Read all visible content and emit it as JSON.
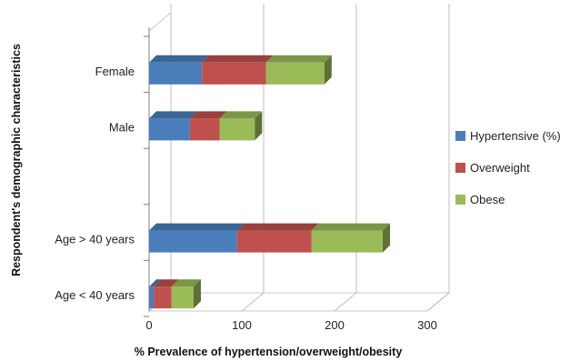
{
  "chart_data": {
    "type": "bar",
    "orientation": "horizontal",
    "stacked": true,
    "three_d": true,
    "categories": [
      "Female",
      "Male",
      "",
      "Age > 40 years",
      "Age < 40 years"
    ],
    "series": [
      {
        "name": "Hypertensive (%)",
        "color": "#4a7ebb",
        "values": [
          57,
          44,
          null,
          95,
          5
        ]
      },
      {
        "name": "Overweight",
        "color": "#c0504d",
        "values": [
          69,
          32,
          null,
          80,
          19
        ]
      },
      {
        "name": "Obese",
        "color": "#9bbb59",
        "values": [
          63,
          38,
          null,
          77,
          24
        ]
      }
    ],
    "xlabel": "% Prevalence of hypertension/overweight/obesity",
    "ylabel": "Respondent's demographic characteristics",
    "xlim": [
      0,
      300
    ],
    "xticks": [
      "0",
      "100",
      "200",
      "300"
    ],
    "grid": "vertical",
    "legend_position": "right"
  }
}
